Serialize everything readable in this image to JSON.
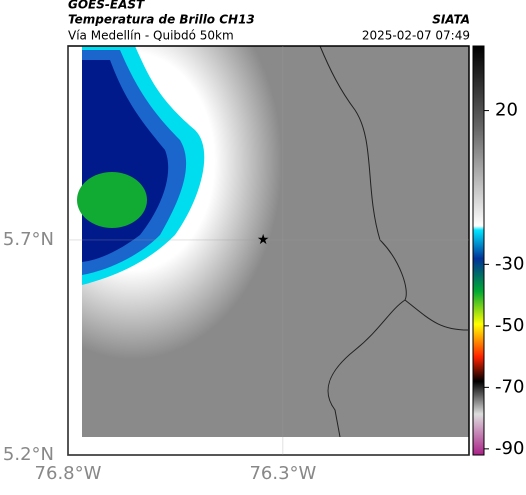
{
  "header": {
    "title": "GOES-EAST",
    "subtitle": "Temperatura de Brillo CH13",
    "route": "Vía Medellín - Quibdó 50km",
    "source": "SIATA",
    "datetime": "2025-02-07 07:49"
  },
  "map": {
    "xlim": [
      -76.8,
      -75.867
    ],
    "ylim": [
      5.2,
      6.151
    ],
    "xticks": [
      {
        "value": -76.8,
        "label": "76.8°W"
      },
      {
        "value": -76.3,
        "label": "76.3°W"
      }
    ],
    "yticks": [
      {
        "value": 5.7,
        "label": "5.7°N"
      },
      {
        "value": 5.2,
        "label": "5.2°N"
      }
    ],
    "marker": {
      "lon": -76.346,
      "lat": 5.7
    }
  },
  "colorbar": {
    "lim": [
      -92,
      41
    ],
    "ticks": [
      20,
      -30,
      -50,
      -70,
      -90
    ]
  }
}
